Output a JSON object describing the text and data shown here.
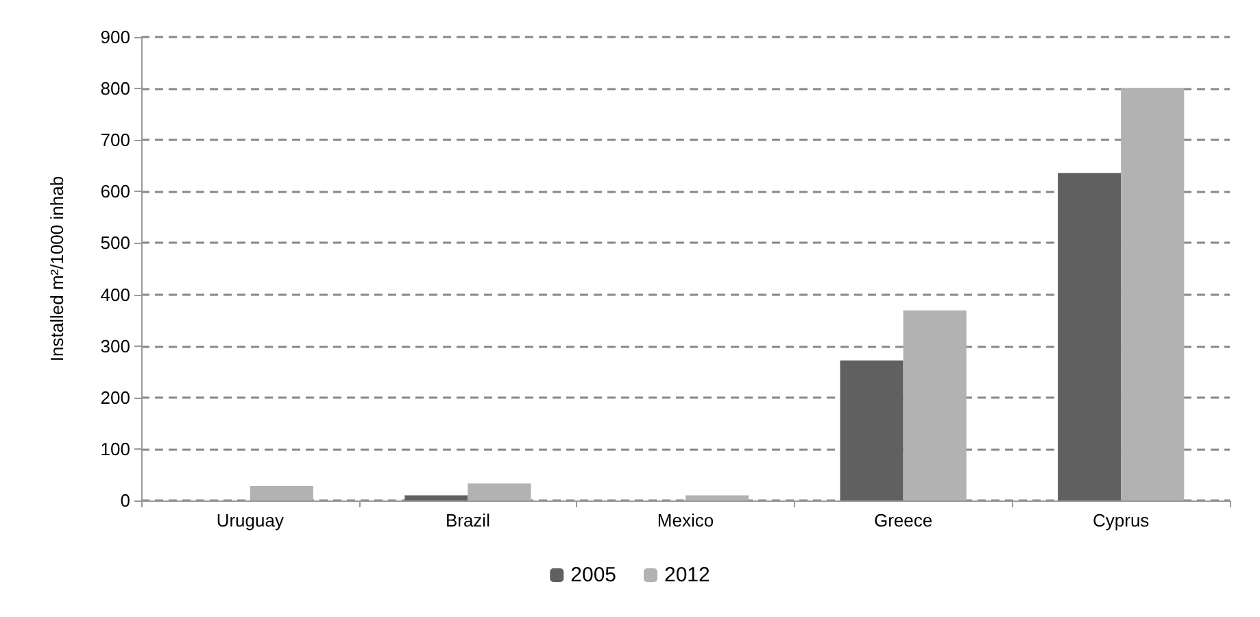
{
  "chart_data": {
    "type": "bar",
    "ylabel": "Installed m²/1000 inhab",
    "categories": [
      "Uruguay",
      "Brazil",
      "Mexico",
      "Greece",
      "Cyprus"
    ],
    "series": [
      {
        "name": "2005",
        "color": "#606060",
        "values": [
          0,
          10,
          null,
          272,
          636
        ]
      },
      {
        "name": "2012",
        "color": "#b2b2b2",
        "values": [
          28,
          33,
          10,
          369,
          801
        ]
      }
    ],
    "ylim": [
      0,
      900
    ],
    "yticks": [
      0,
      100,
      200,
      300,
      400,
      500,
      600,
      700,
      800,
      900
    ],
    "grid": "y",
    "legend": "bottom"
  }
}
